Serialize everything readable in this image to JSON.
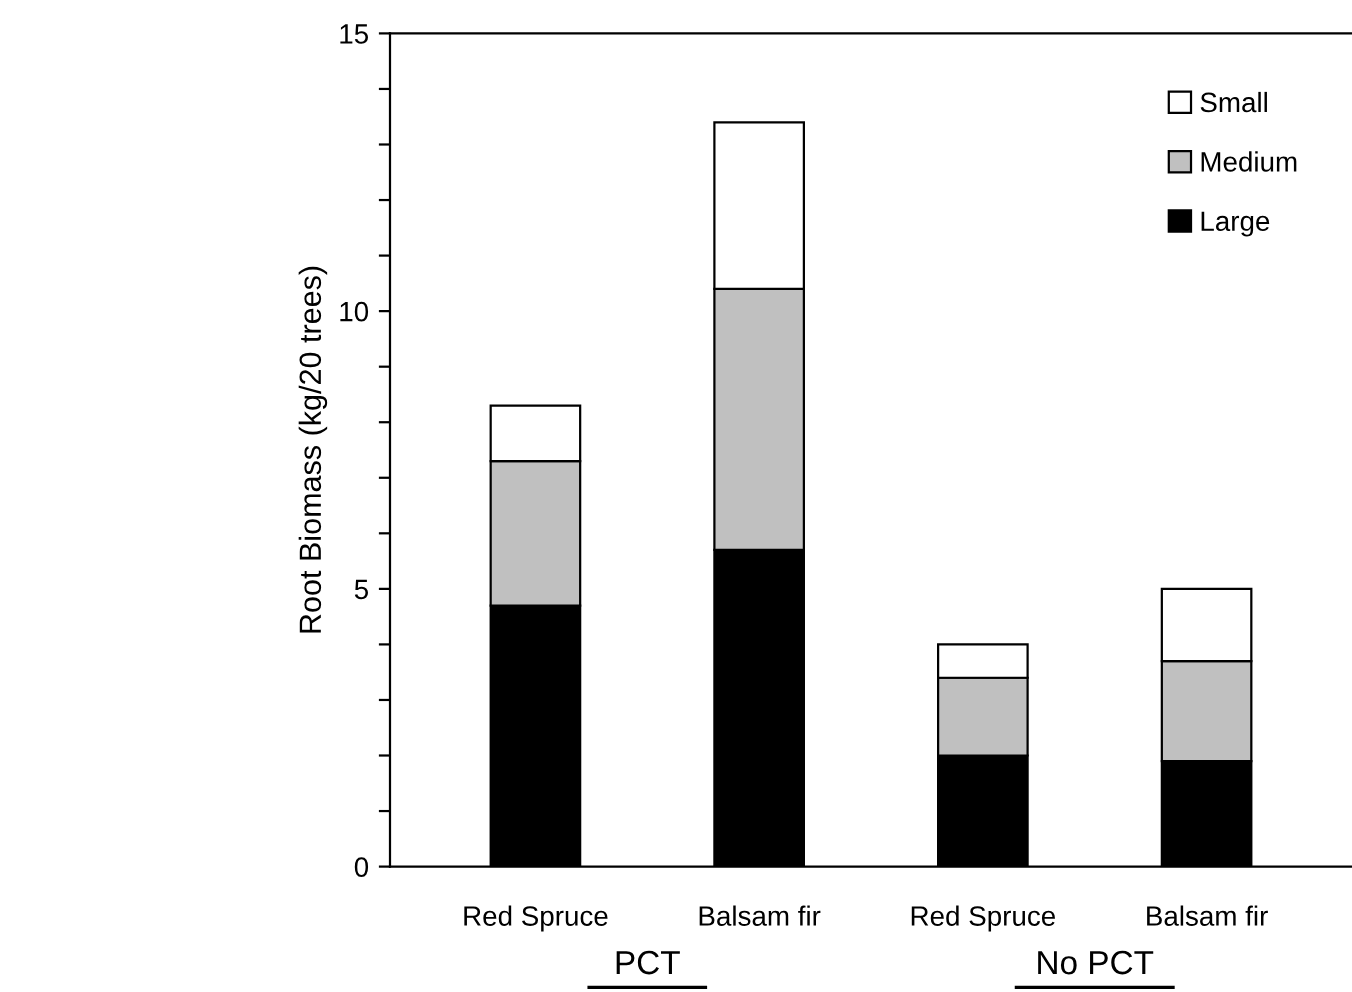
{
  "chart_data": {
    "type": "bar",
    "stacked": true,
    "ylabel": "Root Biomass (kg/20 trees)",
    "categories": [
      "Red Spruce",
      "Balsam fir",
      "Red Spruce",
      "Balsam fir"
    ],
    "series": [
      {
        "name": "Large",
        "color": "#000000",
        "values": [
          4.7,
          5.7,
          2.0,
          1.9
        ]
      },
      {
        "name": "Medium",
        "color": "#c0c0c0",
        "values": [
          2.6,
          4.7,
          1.4,
          1.8
        ]
      },
      {
        "name": "Small",
        "color": "#ffffff",
        "values": [
          1.0,
          3.0,
          0.6,
          1.3
        ]
      }
    ],
    "ylim": [
      0,
      15
    ],
    "yticks": [
      0,
      {
        "value": 1,
        "label": null
      },
      {
        "value": 2,
        "label": null
      },
      {
        "value": 3,
        "label": null
      },
      {
        "value": 4,
        "label": null
      },
      5,
      {
        "value": 6,
        "label": null
      },
      {
        "value": 7,
        "label": null
      },
      {
        "value": 8,
        "label": null
      },
      {
        "value": 9,
        "label": null
      },
      10,
      {
        "value": 11,
        "label": null
      },
      {
        "value": 12,
        "label": null
      },
      {
        "value": 13,
        "label": null
      },
      {
        "value": 14,
        "label": null
      },
      15
    ],
    "annotations": [
      "PCT",
      "No PCT"
    ],
    "legend": "top right",
    "grid": false
  }
}
